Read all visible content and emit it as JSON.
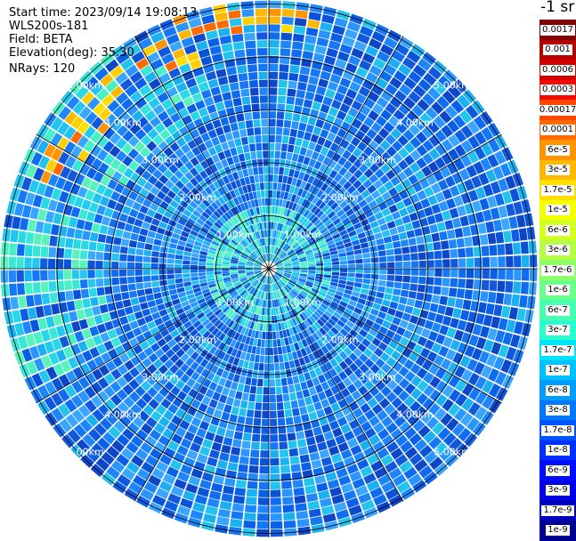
{
  "header": {
    "start_time": "Start time: 2023/09/14 19:08:13",
    "instrument": "WLS200s-181",
    "field": "Field: BETA",
    "elevation": "Elevation(deg): 35.30",
    "nrays": "NRays: 120"
  },
  "colorbar": {
    "unit": "-1 sr",
    "labels": [
      "0.0017",
      "0.001",
      "0.0006",
      "0.0003",
      "0.00017",
      "0.0001",
      "6e-5",
      "3e-5",
      "1.7e-5",
      "1e-5",
      "6e-6",
      "3e-6",
      "1.7e-6",
      "1e-6",
      "6e-7",
      "3e-7",
      "1.7e-7",
      "1e-7",
      "6e-8",
      "3e-8",
      "1.7e-8",
      "1e-8",
      "6e-9",
      "3e-9",
      "1.7e-9",
      "1e-9"
    ],
    "colors": [
      "#7f0000",
      "#b30000",
      "#d40000",
      "#f20a00",
      "#ff4500",
      "#ff6a00",
      "#ff9400",
      "#ffb800",
      "#ffdf00",
      "#f6ff00",
      "#d4ff23",
      "#b4ff43",
      "#8fff68",
      "#6bff8c",
      "#47ffb0",
      "#27ffd0",
      "#00e4f8",
      "#00c0ff",
      "#009cff",
      "#0078ff",
      "#0054ff",
      "#0030ff",
      "#000cff",
      "#0000e8",
      "#0000c0",
      "#000090"
    ]
  },
  "range_rings": {
    "labels": [
      "1.00km",
      "2.00km",
      "3.00km",
      "4.00km",
      "5.00km"
    ]
  }
}
